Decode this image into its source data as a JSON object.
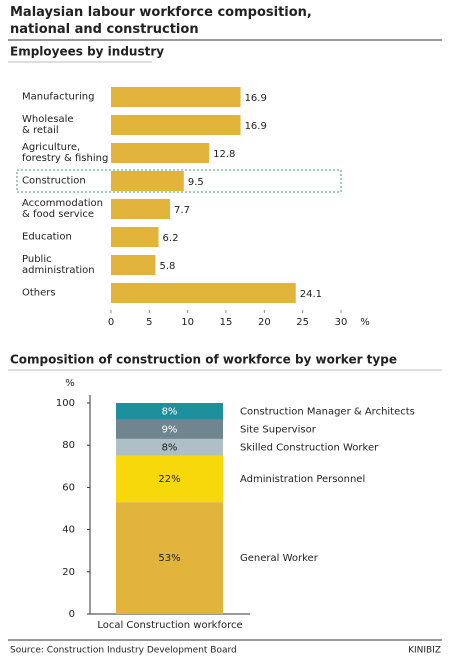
{
  "title": "Malaysian labour workforce composition, national and construction",
  "chart_data": [
    {
      "type": "hbar",
      "title": "Employees by industry",
      "categories": [
        "Manufacturing",
        "Wholesale\n& retail",
        "Agriculture,\nforestry & fishing",
        "Construction",
        "Accommodation\n& food service",
        "Education",
        "Public\nadministration",
        "Others"
      ],
      "values": [
        16.9,
        16.9,
        12.8,
        9.5,
        7.7,
        6.2,
        5.8,
        24.1
      ],
      "color": "#e3b43c",
      "highlight": "Construction",
      "xlim": [
        0,
        30
      ],
      "xticks": [
        0,
        5,
        10,
        15,
        20,
        25,
        30
      ],
      "xlabel": "%"
    },
    {
      "type": "stacked",
      "title": "Composition of construction of workforce by worker type",
      "categories": [
        "Local Construction workforce"
      ],
      "series": [
        {
          "name": "General Worker",
          "color": "#e3b43c",
          "values": [
            53
          ],
          "value_labels": [
            "53%"
          ]
        },
        {
          "name": "Administration Personnel",
          "color": "#f7d90b",
          "values": [
            22
          ],
          "value_labels": [
            "22%"
          ]
        },
        {
          "name": "Skilled Construction Worker",
          "color": "#aebfc6",
          "values": [
            8
          ],
          "value_labels": [
            "8%"
          ]
        },
        {
          "name": "Site Supervisor",
          "color": "#6f8590",
          "values": [
            9
          ],
          "value_labels": [
            "9%"
          ]
        },
        {
          "name": "Construction Manager & Architects",
          "color": "#1e8f9c",
          "values": [
            8
          ],
          "value_labels": [
            "8%"
          ]
        }
      ],
      "ylim": [
        0,
        100
      ],
      "yticks": [
        0,
        20,
        40,
        60,
        80,
        100
      ],
      "ylabel": "%"
    }
  ],
  "source": "Source: Construction Industry Development Board",
  "brand": "KINIBIZ"
}
